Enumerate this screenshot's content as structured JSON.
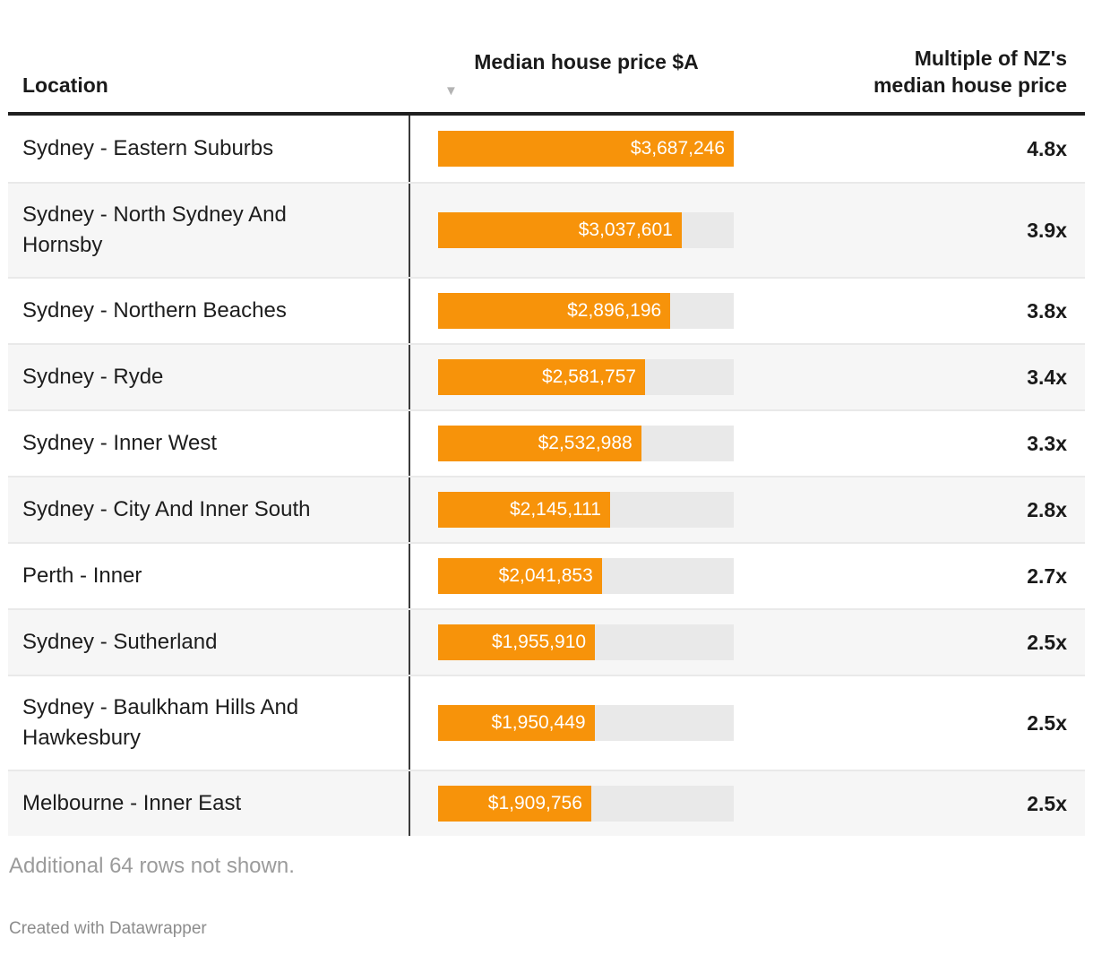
{
  "table": {
    "columns": [
      {
        "label": "Location"
      },
      {
        "label": "Median house price $A",
        "sort_icon": "▼",
        "sort_direction": "descending"
      },
      {
        "label": "Multiple of NZ's\nmedian house price"
      }
    ],
    "max_value": 3687246,
    "rows": [
      {
        "location": "Sydney - Eastern Suburbs",
        "price_label": "$3,687,246",
        "price_value": 3687246,
        "multiple": "4.8x"
      },
      {
        "location": "Sydney - North Sydney And\nHornsby",
        "price_label": "$3,037,601",
        "price_value": 3037601,
        "multiple": "3.9x"
      },
      {
        "location": "Sydney - Northern Beaches",
        "price_label": "$2,896,196",
        "price_value": 2896196,
        "multiple": "3.8x"
      },
      {
        "location": "Sydney - Ryde",
        "price_label": "$2,581,757",
        "price_value": 2581757,
        "multiple": "3.4x"
      },
      {
        "location": "Sydney - Inner West",
        "price_label": "$2,532,988",
        "price_value": 2532988,
        "multiple": "3.3x"
      },
      {
        "location": "Sydney - City And Inner South",
        "price_label": "$2,145,111",
        "price_value": 2145111,
        "multiple": "2.8x"
      },
      {
        "location": "Perth - Inner",
        "price_label": "$2,041,853",
        "price_value": 2041853,
        "multiple": "2.7x"
      },
      {
        "location": "Sydney - Sutherland",
        "price_label": "$1,955,910",
        "price_value": 1955910,
        "multiple": "2.5x"
      },
      {
        "location": "Sydney - Baulkham Hills And\nHawkesbury",
        "price_label": "$1,950,449",
        "price_value": 1950449,
        "multiple": "2.5x"
      },
      {
        "location": "Melbourne - Inner East",
        "price_label": "$1,909,756",
        "price_value": 1909756,
        "multiple": "2.5x"
      }
    ]
  },
  "footer": {
    "note": "Additional 64 rows not shown.",
    "credit": "Created with Datawrapper"
  },
  "colors": {
    "bar": "#f7930a",
    "bar_track": "#e9e9e9",
    "alt_row": "#f6f6f6",
    "header_rule": "#1f1f1f",
    "divider": "#3a3a3a"
  },
  "chart_data": {
    "type": "bar",
    "title": "",
    "xlabel": "Median house price $A",
    "ylabel": "Location",
    "xlim": [
      0,
      3687246
    ],
    "sort": {
      "column": "Median house price $A",
      "direction": "desc"
    },
    "categories": [
      "Sydney - Eastern Suburbs",
      "Sydney - North Sydney And Hornsby",
      "Sydney - Northern Beaches",
      "Sydney - Ryde",
      "Sydney - Inner West",
      "Sydney - City And Inner South",
      "Perth - Inner",
      "Sydney - Sutherland",
      "Sydney - Baulkham Hills And Hawkesbury",
      "Melbourne - Inner East"
    ],
    "series": [
      {
        "name": "Median house price $A",
        "values": [
          3687246,
          3037601,
          2896196,
          2581757,
          2532988,
          2145111,
          2041853,
          1955910,
          1950449,
          1909756
        ]
      },
      {
        "name": "Multiple of NZ's median house price",
        "values": [
          4.8,
          3.9,
          3.8,
          3.4,
          3.3,
          2.8,
          2.7,
          2.5,
          2.5,
          2.5
        ]
      }
    ],
    "annotations": [
      "Additional 64 rows not shown.",
      "Created with Datawrapper"
    ]
  }
}
